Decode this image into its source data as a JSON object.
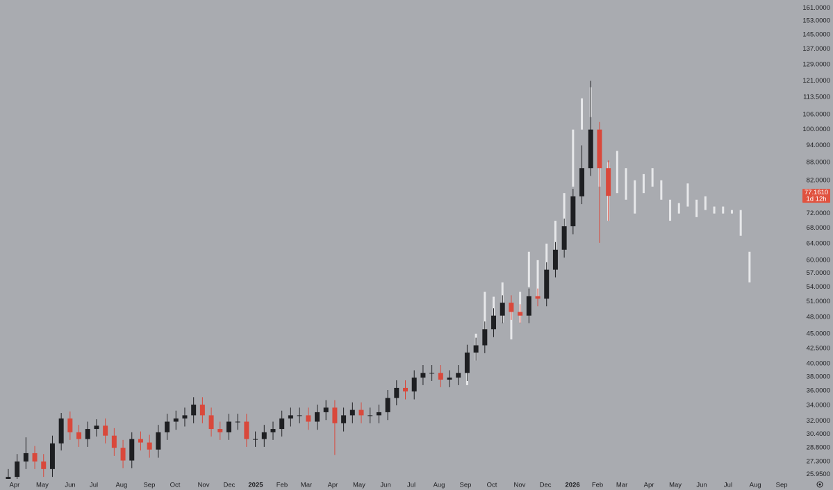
{
  "chart_data": {
    "type": "candlestick",
    "log_y": true,
    "grid": false,
    "up_color": "#1e1f22",
    "down_color": "#d9483b",
    "projection_color": "#f2f2f4",
    "open": [
      25.3,
      25.7,
      27.3,
      28.2,
      27.3,
      26.5,
      29.3,
      32.3,
      30.6,
      29.8,
      31.0,
      31.4,
      30.2,
      28.8,
      27.4,
      29.8,
      29.4,
      28.6,
      30.6,
      31.9,
      32.3,
      32.7,
      34.1,
      32.7,
      31.0,
      30.6,
      31.9,
      31.9,
      29.8,
      29.8,
      30.6,
      31.0,
      32.3,
      32.7,
      32.7,
      31.9,
      33.1,
      33.7,
      31.7,
      32.7,
      33.4,
      32.7,
      32.7,
      33.1,
      35.0,
      36.4,
      35.9,
      37.9,
      38.6,
      38.6,
      37.6,
      37.9,
      38.6,
      41.8,
      43.0,
      45.8,
      48.3,
      50.8,
      49.0,
      48.3,
      52.1,
      51.6,
      57.8,
      62.5,
      68.5,
      77.0,
      86.0,
      100.0,
      86.0
    ],
    "high": [
      26.5,
      28.1,
      30.0,
      29.0,
      28.1,
      30.2,
      33.0,
      33.2,
      31.5,
      31.9,
      32.2,
      32.3,
      31.1,
      29.7,
      30.6,
      30.7,
      30.3,
      31.5,
      32.9,
      33.3,
      33.7,
      35.1,
      35.1,
      33.7,
      31.9,
      32.9,
      32.9,
      32.9,
      30.7,
      31.5,
      31.9,
      33.3,
      33.7,
      33.7,
      33.7,
      34.1,
      34.7,
      34.7,
      33.7,
      34.4,
      34.4,
      33.7,
      34.1,
      36.1,
      37.5,
      37.5,
      39.0,
      39.8,
      39.8,
      39.8,
      39.0,
      39.8,
      43.1,
      44.3,
      47.2,
      49.7,
      52.3,
      52.3,
      50.5,
      53.7,
      53.7,
      59.5,
      64.4,
      70.6,
      79.3,
      94.0,
      121.0,
      103.0,
      88.6
    ],
    "low": [
      24.9,
      25.0,
      26.5,
      26.5,
      25.7,
      25.7,
      28.5,
      29.7,
      28.9,
      28.9,
      30.1,
      29.3,
      27.9,
      26.6,
      26.6,
      28.5,
      27.7,
      27.7,
      29.7,
      30.9,
      31.3,
      31.7,
      31.7,
      30.1,
      29.7,
      29.7,
      30.9,
      28.9,
      28.9,
      28.9,
      29.7,
      30.1,
      31.3,
      31.7,
      30.9,
      30.9,
      32.1,
      28.0,
      30.7,
      31.7,
      31.7,
      31.7,
      31.7,
      32.1,
      34.0,
      34.8,
      34.8,
      36.8,
      37.4,
      36.5,
      36.5,
      36.8,
      37.4,
      40.5,
      41.7,
      44.4,
      46.9,
      47.5,
      46.9,
      46.9,
      50.1,
      50.1,
      56.1,
      60.6,
      66.4,
      74.7,
      83.4,
      64.2,
      70.0
    ],
    "close": [
      25.7,
      27.3,
      28.2,
      27.3,
      26.5,
      29.3,
      32.3,
      30.6,
      29.8,
      31.0,
      31.4,
      30.2,
      28.8,
      27.4,
      29.8,
      29.4,
      28.6,
      30.6,
      31.9,
      32.3,
      32.7,
      34.1,
      32.7,
      31.0,
      30.6,
      31.9,
      31.9,
      29.8,
      29.8,
      30.6,
      31.0,
      32.3,
      32.7,
      32.7,
      31.9,
      33.1,
      33.7,
      31.7,
      32.7,
      33.4,
      32.7,
      32.7,
      33.1,
      35.0,
      36.4,
      35.9,
      37.9,
      38.6,
      38.6,
      37.6,
      37.9,
      38.6,
      41.8,
      43.0,
      45.8,
      48.3,
      50.8,
      49.0,
      48.3,
      52.1,
      51.6,
      57.8,
      62.5,
      68.5,
      77.0,
      86.0,
      100.0,
      86.0,
      77.161
    ],
    "projection": {
      "x": [
        52,
        53,
        54,
        55,
        56,
        57,
        58,
        59,
        60,
        61,
        62,
        63,
        64,
        65,
        66,
        67,
        68,
        69,
        70,
        71,
        72,
        73,
        74,
        75,
        76,
        77,
        78,
        79,
        80,
        81,
        82,
        83,
        84
      ],
      "high": [
        40.5,
        45,
        53,
        52,
        55,
        50,
        53,
        62,
        60,
        64,
        70,
        78,
        100,
        113,
        118,
        94,
        88,
        92,
        86,
        82,
        84,
        86,
        82,
        76,
        75,
        81,
        76,
        77,
        74,
        74,
        73,
        73,
        62
      ],
      "low": [
        36.8,
        40.5,
        44,
        46,
        47,
        44,
        47,
        54,
        52,
        56,
        62,
        68,
        80,
        100,
        105,
        80,
        70,
        78,
        76,
        72,
        78,
        80,
        76,
        70,
        72,
        74,
        71,
        73,
        72,
        72,
        72,
        66,
        55
      ]
    },
    "price_label": {
      "value": 77.161,
      "label": "77.1610",
      "countdown": "1d 12h"
    },
    "xlim": [
      -0.94,
      89.6
    ],
    "ylim": [
      25.5,
      166
    ],
    "xticks": [
      {
        "value": 0.71,
        "label": "Apr"
      },
      {
        "value": 3.86,
        "label": "May"
      },
      {
        "value": 7.01,
        "label": "Jun"
      },
      {
        "value": 9.69,
        "label": "Jul"
      },
      {
        "value": 12.83,
        "label": "Aug"
      },
      {
        "value": 15.98,
        "label": "Sep"
      },
      {
        "value": 18.9,
        "label": "Oct"
      },
      {
        "value": 22.13,
        "label": "Nov"
      },
      {
        "value": 25.04,
        "label": "Dec"
      },
      {
        "value": 28.03,
        "label": "2025"
      },
      {
        "value": 31.02,
        "label": "Feb"
      },
      {
        "value": 33.78,
        "label": "Mar"
      },
      {
        "value": 36.77,
        "label": "Apr"
      },
      {
        "value": 39.76,
        "label": "May"
      },
      {
        "value": 42.76,
        "label": "Jun"
      },
      {
        "value": 45.67,
        "label": "Jul"
      },
      {
        "value": 48.82,
        "label": "Aug"
      },
      {
        "value": 51.81,
        "label": "Sep"
      },
      {
        "value": 54.8,
        "label": "Oct"
      },
      {
        "value": 57.95,
        "label": "Nov"
      },
      {
        "value": 60.87,
        "label": "Dec"
      },
      {
        "value": 63.94,
        "label": "2026"
      },
      {
        "value": 66.77,
        "label": "Feb"
      },
      {
        "value": 69.53,
        "label": "Mar"
      },
      {
        "value": 72.6,
        "label": "Apr"
      },
      {
        "value": 75.59,
        "label": "May"
      },
      {
        "value": 78.58,
        "label": "Jun"
      },
      {
        "value": 81.57,
        "label": "Jul"
      },
      {
        "value": 84.65,
        "label": "Aug"
      },
      {
        "value": 87.64,
        "label": "Sep"
      }
    ],
    "yticks": [
      {
        "value": 161,
        "label": "161.0000"
      },
      {
        "value": 153,
        "label": "153.0000"
      },
      {
        "value": 145,
        "label": "145.0000"
      },
      {
        "value": 137,
        "label": "137.0000"
      },
      {
        "value": 129,
        "label": "129.0000"
      },
      {
        "value": 121,
        "label": "121.0000"
      },
      {
        "value": 113.5,
        "label": "113.5000"
      },
      {
        "value": 106,
        "label": "106.0000"
      },
      {
        "value": 100,
        "label": "100.0000"
      },
      {
        "value": 94,
        "label": "94.0000"
      },
      {
        "value": 88,
        "label": "88.0000"
      },
      {
        "value": 82,
        "label": "82.0000"
      },
      {
        "value": 72,
        "label": "72.0000"
      },
      {
        "value": 68,
        "label": "68.0000"
      },
      {
        "value": 64,
        "label": "64.0000"
      },
      {
        "value": 60,
        "label": "60.0000"
      },
      {
        "value": 57,
        "label": "57.0000"
      },
      {
        "value": 54,
        "label": "54.0000"
      },
      {
        "value": 51,
        "label": "51.0000"
      },
      {
        "value": 48,
        "label": "48.0000"
      },
      {
        "value": 45,
        "label": "45.0000"
      },
      {
        "value": 42.5,
        "label": "42.5000"
      },
      {
        "value": 40,
        "label": "40.0000"
      },
      {
        "value": 38,
        "label": "38.0000"
      },
      {
        "value": 36,
        "label": "36.0000"
      },
      {
        "value": 34,
        "label": "34.0000"
      },
      {
        "value": 32,
        "label": "32.0000"
      },
      {
        "value": 30.4,
        "label": "30.4000"
      },
      {
        "value": 28.8,
        "label": "28.8000"
      },
      {
        "value": 27.3,
        "label": "27.3000"
      },
      {
        "value": 25.95,
        "label": "25.9500"
      }
    ]
  }
}
